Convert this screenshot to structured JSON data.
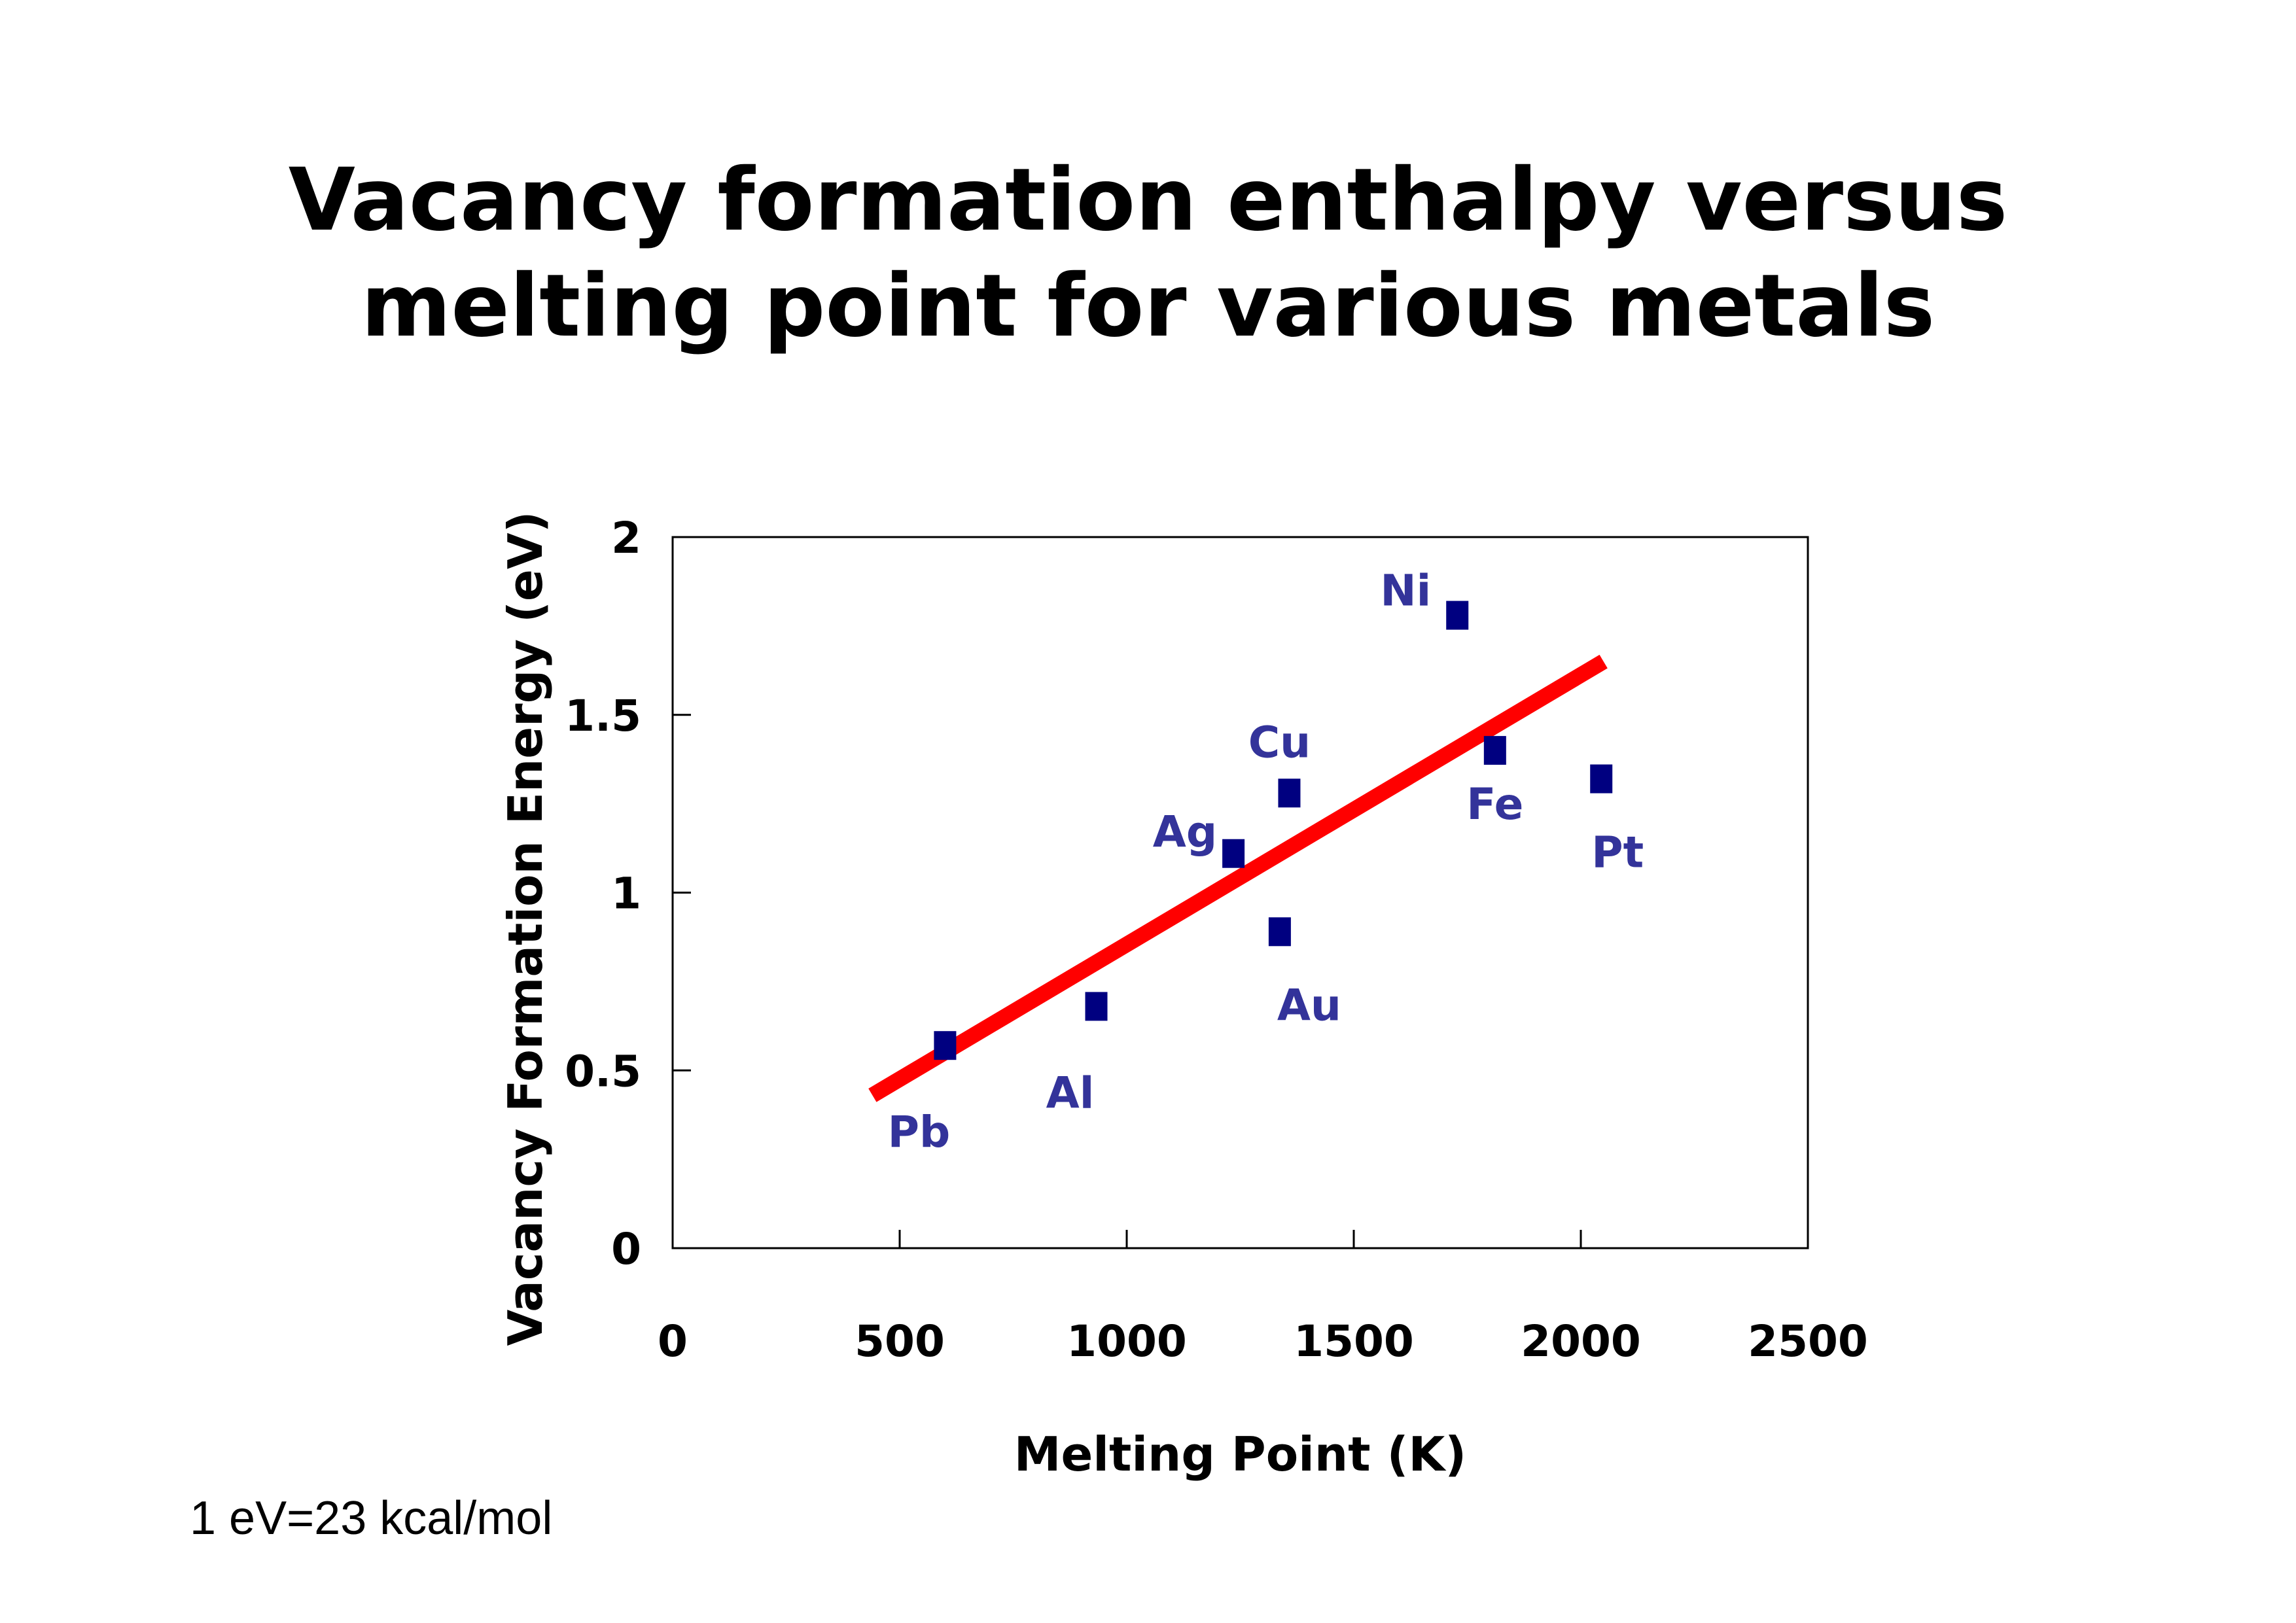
{
  "title_lines": [
    "Vacancy formation enthalpy versus",
    "melting point for various metals"
  ],
  "note": "1 eV=23 kcal/mol",
  "colors": {
    "marker": "#000080",
    "label": "#33339a",
    "fit_line": "#ff0000",
    "axis": "#000000"
  },
  "chart_data": {
    "type": "scatter",
    "xlabel": "Melting Point (K)",
    "ylabel": "Vacancy Formation Energy (eV)",
    "xlim": [
      0,
      2500
    ],
    "ylim": [
      0,
      2
    ],
    "xticks": [
      "0",
      "500",
      "1000",
      "1500",
      "2000",
      "2500"
    ],
    "yticks": [
      "0",
      "0.5",
      "1",
      "1.5",
      "2"
    ],
    "grid": false,
    "points": [
      {
        "label": "Pb",
        "x": 600,
        "y": 0.57,
        "pos": "below-left"
      },
      {
        "label": "Al",
        "x": 933,
        "y": 0.68,
        "pos": "below-left"
      },
      {
        "label": "Ag",
        "x": 1235,
        "y": 1.11,
        "pos": "left"
      },
      {
        "label": "Cu",
        "x": 1358,
        "y": 1.28,
        "pos": "above"
      },
      {
        "label": "Au",
        "x": 1337,
        "y": 0.89,
        "pos": "below"
      },
      {
        "label": "Ni",
        "x": 1728,
        "y": 1.78,
        "pos": "left"
      },
      {
        "label": "Fe",
        "x": 1811,
        "y": 1.4,
        "pos": "below"
      },
      {
        "label": "Pt",
        "x": 2045,
        "y": 1.32,
        "pos": "below"
      }
    ],
    "fit_line": {
      "x": [
        440,
        2050
      ],
      "y": [
        0.43,
        1.65
      ]
    }
  }
}
